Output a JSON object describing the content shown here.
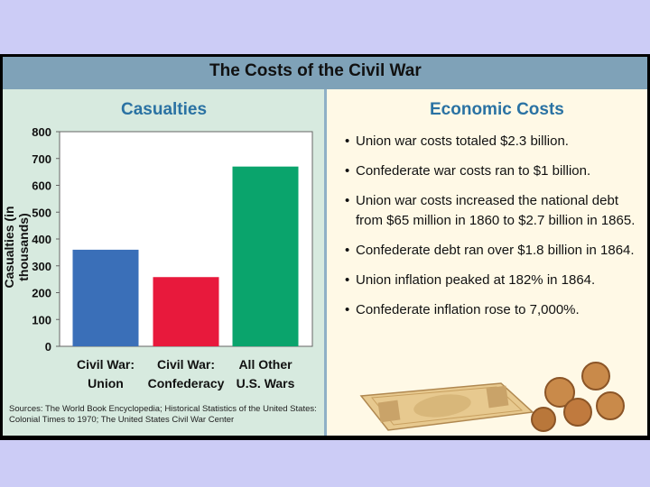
{
  "title": "The Costs of the Civil War",
  "left": {
    "heading": "Casualties",
    "sources": "Sources: The World Book Encyclopedia; Historical Statistics of the United States: Colonial Times to 1970; The United States Civil War Center"
  },
  "right": {
    "heading": "Economic Costs",
    "bullets": [
      "Union war costs totaled $2.3 billion.",
      "Confederate war costs ran to $1 billion.",
      "Union war costs increased the national debt from $65 million in 1860 to $2.7 billion in 1865.",
      "Confederate debt ran over $1.8 billion in 1864.",
      "Union inflation peaked at 182% in 1864.",
      "Confederate inflation rose to 7,000%."
    ]
  },
  "colors": {
    "union": "#3a6fb8",
    "confederacy": "#e8193c",
    "other": "#0aa46c"
  },
  "chart_data": {
    "type": "bar",
    "title": "Casualties",
    "ylabel": "Casualties (in thousands)",
    "xlabel": "",
    "ylim": [
      0,
      800
    ],
    "yticks": [
      0,
      100,
      200,
      300,
      400,
      500,
      600,
      700,
      800
    ],
    "categories": [
      "Civil War: Union",
      "Civil War: Confederacy",
      "All Other U.S. Wars"
    ],
    "category_lines": [
      [
        "Civil War:",
        "Union"
      ],
      [
        "Civil War:",
        "Confederacy"
      ],
      [
        "All Other",
        "U.S. Wars"
      ]
    ],
    "values": [
      360,
      258,
      670
    ],
    "grid": false
  }
}
